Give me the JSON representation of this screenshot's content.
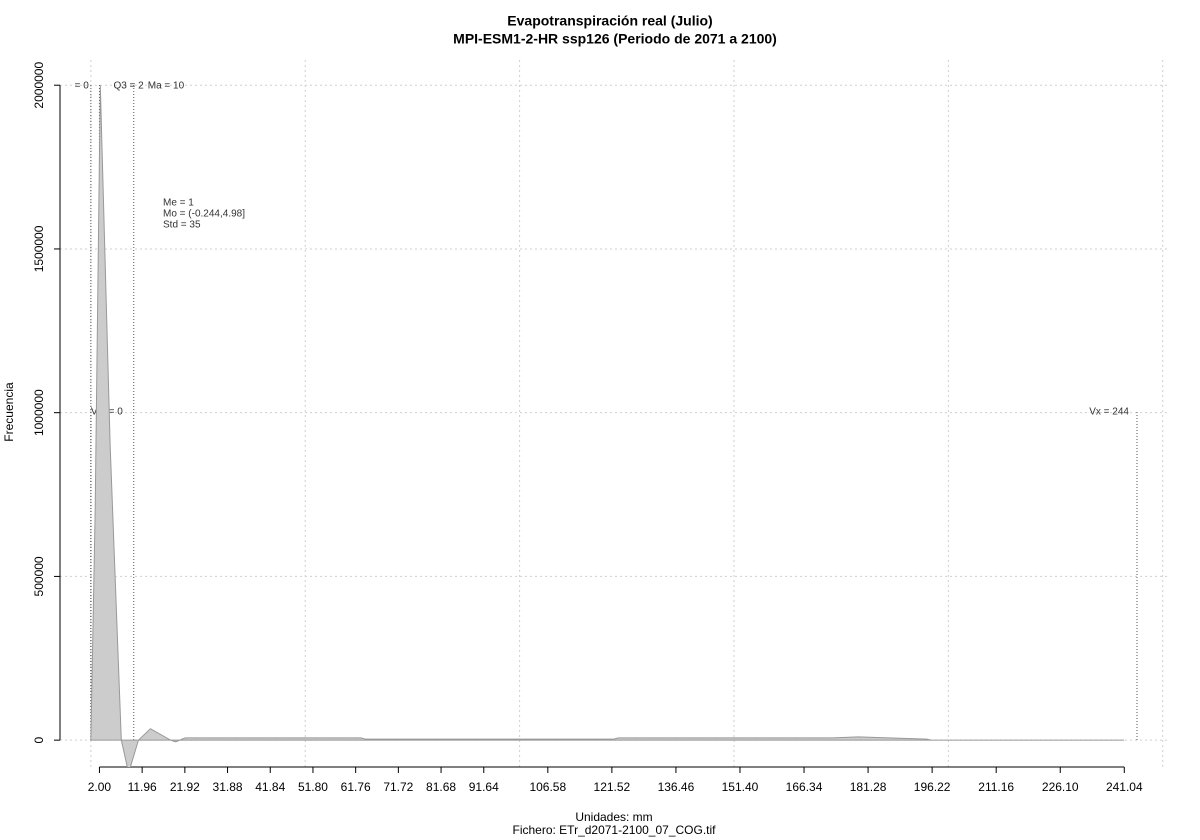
{
  "chart_data": {
    "type": "area",
    "title": "Evapotranspiración real (Julio)",
    "subtitle": "MPI-ESM1-2-HR ssp126 (Periodo de 2071 a 2100)",
    "y_label": "Frecuencia",
    "x_label": "Unidades: mm",
    "caption": "Fichero: ETr_d2071-2100_07_COG.tif",
    "x": [
      0,
      1,
      2.2,
      4.5,
      7.1,
      8.8,
      11.1,
      13.9,
      18.6,
      19.8,
      22,
      63,
      64,
      122,
      123,
      173,
      179,
      186,
      195,
      196,
      241
    ],
    "values": [
      0,
      700000,
      2000000,
      900000,
      0,
      -100000,
      0,
      35000,
      0,
      -5000,
      7000,
      7000,
      3000,
      3000,
      7000,
      7000,
      10000,
      7000,
      3000,
      0,
      0
    ],
    "color": "#cccccc",
    "outline": "#999999",
    "xlim": [
      -7.2,
      251.7
    ],
    "ylim": [
      -82000,
      2077000
    ],
    "xticks": [
      {
        "value": 2,
        "label": "2.00"
      },
      11.96,
      21.92,
      31.88,
      41.84,
      {
        "value": 51.8,
        "label": "51.80"
      },
      61.76,
      71.72,
      81.68,
      91.64,
      106.58,
      121.52,
      136.46,
      {
        "value": 151.4,
        "label": "151.40"
      },
      166.34,
      181.28,
      196.22,
      211.16,
      {
        "value": 226.1,
        "label": "226.10"
      },
      241.04
    ],
    "yticks": [
      0,
      500000,
      1000000,
      1500000,
      2000000
    ],
    "xgrid": [
      0,
      50,
      100,
      150,
      200,
      250
    ],
    "grid": true,
    "top_markers": [
      {
        "label": "= 0",
        "value": 0
      },
      {
        "label": "Q3 = 2",
        "value": 2
      },
      {
        "label": "Ma = 10",
        "value": 10
      }
    ],
    "mid_markers": [
      {
        "label": "Vm = 0",
        "value": 0
      },
      {
        "label": "Vx = 244",
        "value": 244
      }
    ],
    "stats": [
      "Me = 1",
      "Mo = (-0.244,4.98]",
      "Std = 35"
    ]
  }
}
